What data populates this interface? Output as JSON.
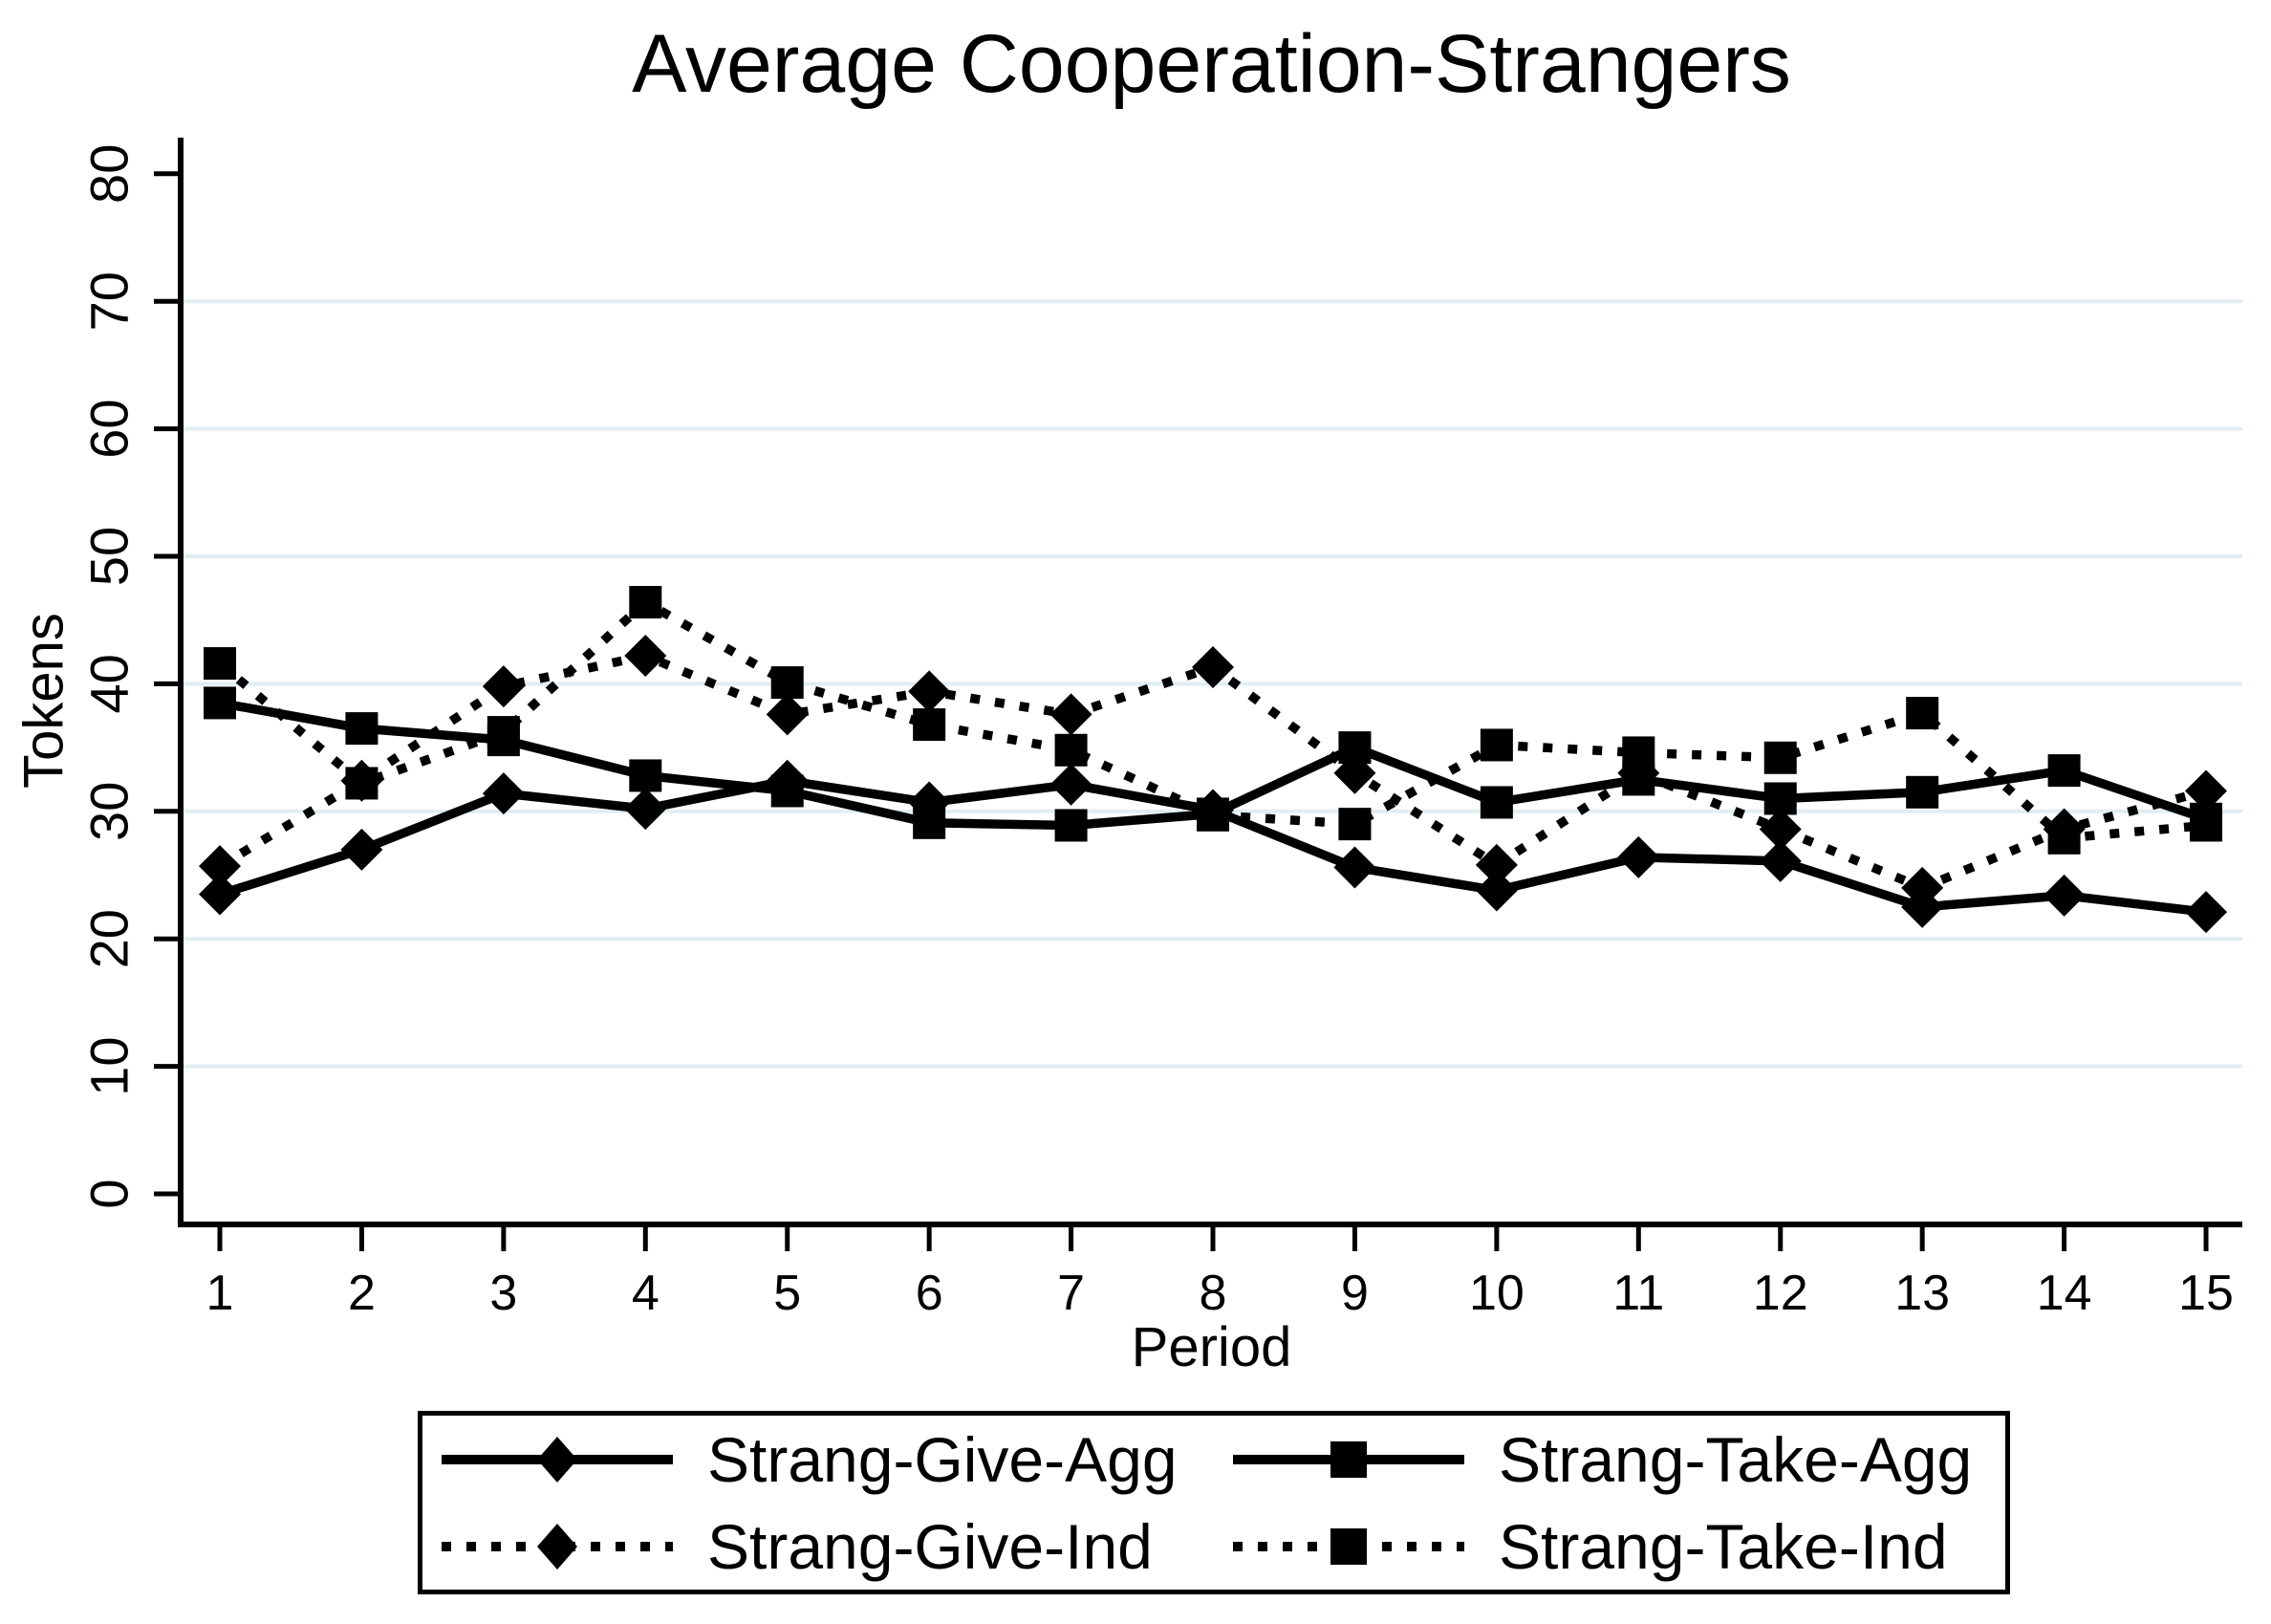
{
  "colors": {
    "line": "#000000",
    "text": "#000000",
    "grid": "#e2edf2",
    "background": "#ffffff"
  },
  "chart_data": {
    "type": "line",
    "title": "Average Cooperation-Strangers",
    "xlabel": "Period",
    "ylabel": "Tokens",
    "x": [
      1,
      2,
      3,
      4,
      5,
      6,
      7,
      8,
      9,
      10,
      11,
      12,
      13,
      14,
      15
    ],
    "ylim": [
      0,
      80
    ],
    "yticks": [
      0,
      10,
      20,
      30,
      40,
      50,
      60,
      70,
      80
    ],
    "grid_yticks": [
      10,
      20,
      30,
      40,
      50,
      60,
      70
    ],
    "grid": "horizontal-only",
    "legend_position": "bottom",
    "series": [
      {
        "name": "Strang-Give-Agg",
        "marker": "diamond",
        "line": "solid",
        "values": [
          23.5,
          27.0,
          31.4,
          30.2,
          32.4,
          30.7,
          32.1,
          30.1,
          25.6,
          23.8,
          26.4,
          26.1,
          22.5,
          23.4,
          22.1
        ]
      },
      {
        "name": "Strang-Take-Agg",
        "marker": "square",
        "line": "solid",
        "values": [
          38.5,
          36.5,
          35.6,
          32.8,
          31.6,
          29.1,
          28.9,
          29.8,
          35.0,
          30.7,
          32.5,
          31.0,
          31.5,
          33.2,
          29.4
        ]
      },
      {
        "name": "Strang-Give-Ind",
        "marker": "diamond",
        "line": "dotted",
        "values": [
          25.7,
          32.4,
          39.8,
          42.2,
          37.6,
          39.4,
          37.6,
          41.3,
          33.0,
          25.8,
          33.0,
          28.6,
          24.0,
          28.6,
          31.6
        ]
      },
      {
        "name": "Strang-Take-Ind",
        "marker": "square",
        "line": "dotted",
        "values": [
          41.6,
          32.2,
          36.2,
          46.4,
          40.1,
          36.8,
          34.8,
          29.7,
          29.0,
          35.2,
          34.6,
          34.2,
          37.7,
          27.9,
          28.9
        ]
      }
    ]
  },
  "legend": {
    "items": [
      {
        "label": "Strang-Give-Agg",
        "series": 0
      },
      {
        "label": "Strang-Take-Agg",
        "series": 1
      },
      {
        "label": "Strang-Give-Ind",
        "series": 2
      },
      {
        "label": "Strang-Take-Ind",
        "series": 3
      }
    ]
  }
}
